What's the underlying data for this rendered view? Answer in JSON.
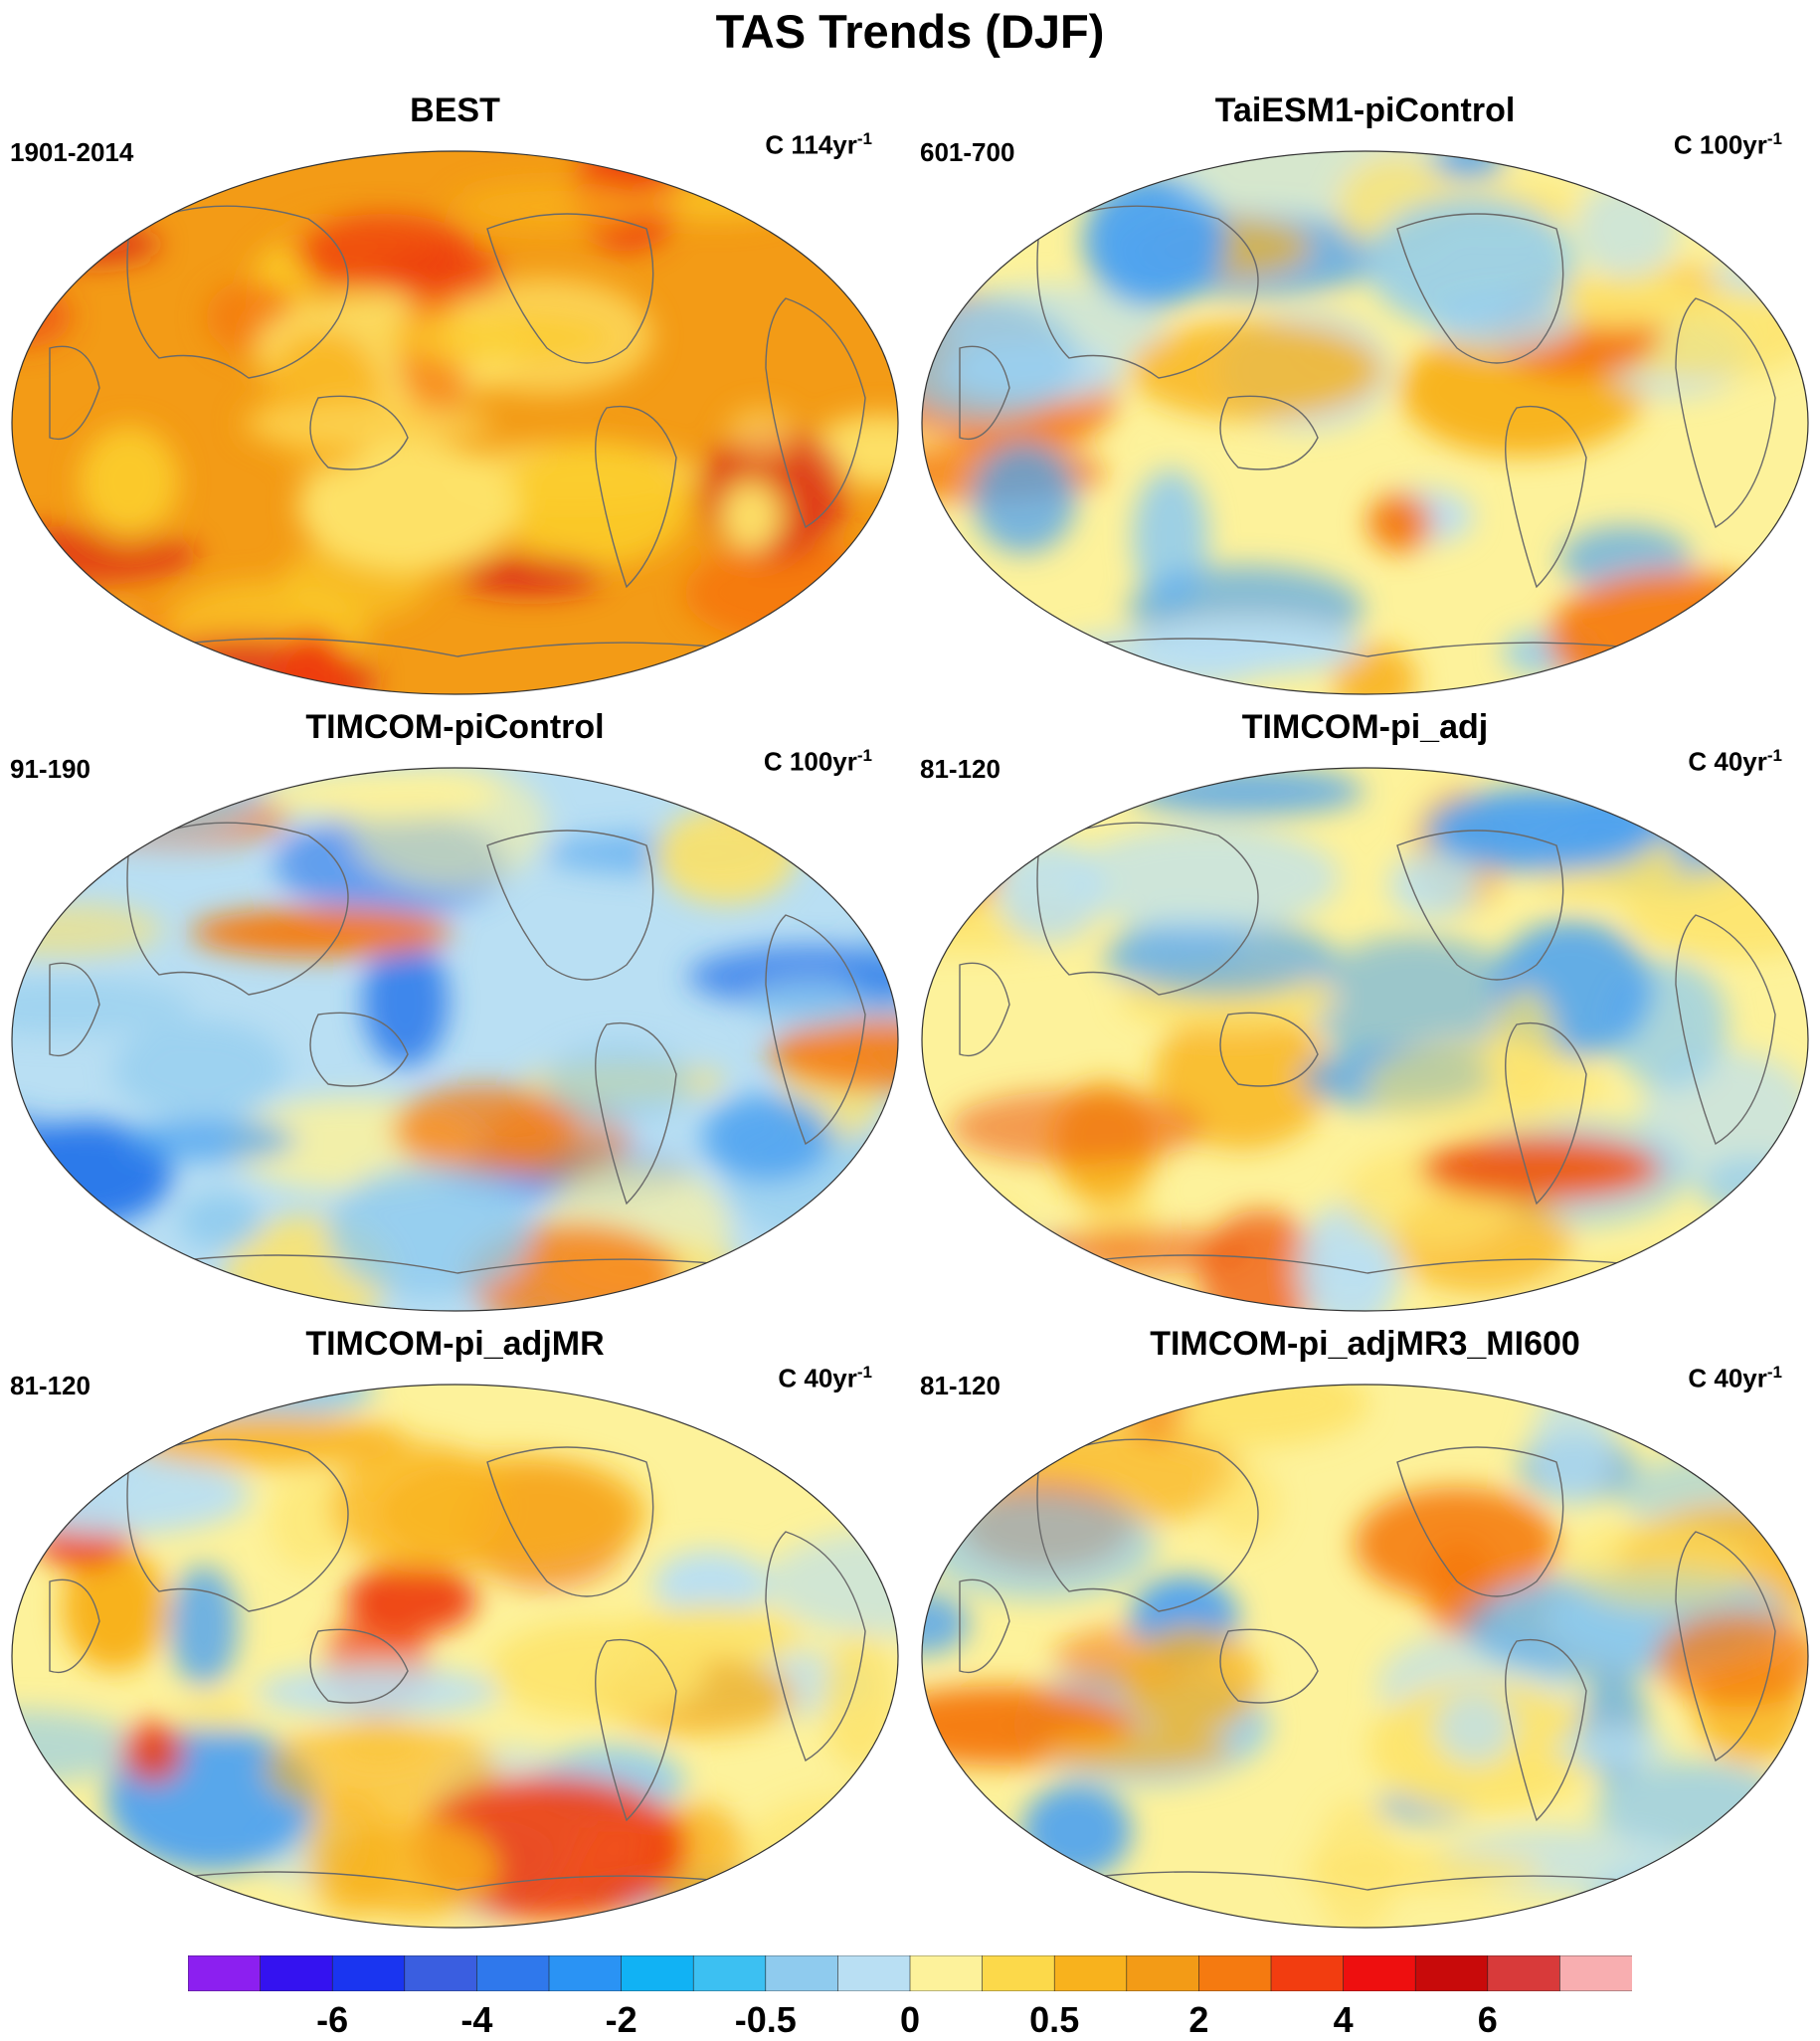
{
  "title": "TAS Trends (DJF)",
  "panels": [
    {
      "title": "BEST",
      "period": "1901-2014",
      "units_prefix": "C ",
      "units_main": "114yr",
      "units_sup": "-1",
      "palette": [
        "#f39b16",
        "#f8b21d",
        "#fbcc2a",
        "#fde36a",
        "#f57a10",
        "#ee3d10",
        "#d81818"
      ]
    },
    {
      "title": "TaiESM1-piControl",
      "period": "601-700",
      "units_prefix": "C ",
      "units_main": "100yr",
      "units_sup": "-1",
      "palette": [
        "#fdf29b",
        "#b9dff3",
        "#fde36a",
        "#8fcbee",
        "#f8b21d",
        "#4da2f0",
        "#f57a10"
      ]
    },
    {
      "title": "TIMCOM-piControl",
      "period": "91-190",
      "units_prefix": "C ",
      "units_main": "100yr",
      "units_sup": "-1",
      "palette": [
        "#b9dff3",
        "#8fcbee",
        "#4da2f0",
        "#fdf29b",
        "#2a78ea",
        "#fde36a",
        "#f57a10"
      ]
    },
    {
      "title": "TIMCOM-pi_adj",
      "period": "81-120",
      "units_prefix": "C ",
      "units_main": "40yr",
      "units_sup": "-1",
      "palette": [
        "#fdf29b",
        "#fde36a",
        "#b9dff3",
        "#8fcbee",
        "#f8b21d",
        "#4da2f0",
        "#ee5a10"
      ]
    },
    {
      "title": "TIMCOM-pi_adjMR",
      "period": "81-120",
      "units_prefix": "C ",
      "units_main": "40yr",
      "units_sup": "-1",
      "palette": [
        "#fdf29b",
        "#b9dff3",
        "#8fcbee",
        "#fde36a",
        "#f8b21d",
        "#4da2f0",
        "#ee3d10"
      ]
    },
    {
      "title": "TIMCOM-pi_adjMR3_MI600",
      "period": "81-120",
      "units_prefix": "C ",
      "units_main": "40yr",
      "units_sup": "-1",
      "palette": [
        "#fdf29b",
        "#fde36a",
        "#b9dff3",
        "#8fcbee",
        "#f8b21d",
        "#4da2f0",
        "#f57a10"
      ]
    }
  ],
  "colorbar": {
    "colors": [
      "#8c1ff0",
      "#3412f0",
      "#1a35f0",
      "#3a5ee0",
      "#2f78ec",
      "#2a93f4",
      "#11b2f4",
      "#3cc0f2",
      "#8fcbee",
      "#b9dff3",
      "#fdf29b",
      "#fcd94a",
      "#f8b21d",
      "#f39b16",
      "#f57a10",
      "#f23d10",
      "#ee0f0f",
      "#c80a0a",
      "#d83a3a",
      "#f8aeb0"
    ],
    "labels": [
      "-6",
      "-4",
      "-2",
      "-0.5",
      "0",
      "0.5",
      "2",
      "4",
      "6"
    ]
  }
}
